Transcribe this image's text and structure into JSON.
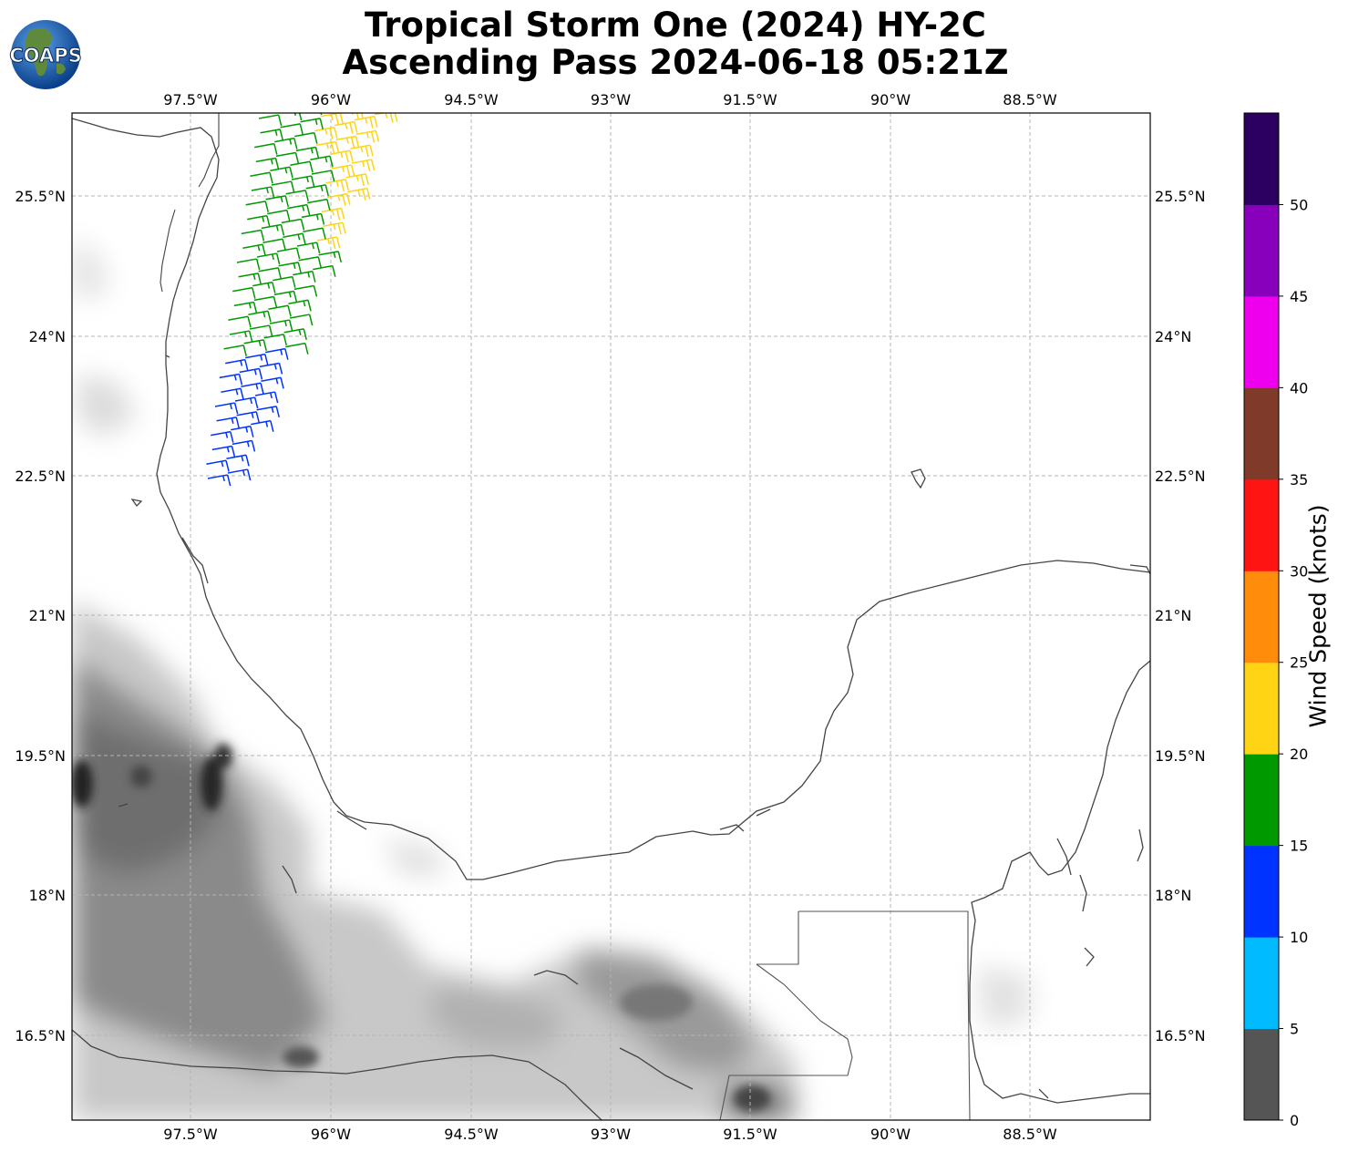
{
  "title_line1": "Tropical Storm One (2024) HY-2C",
  "title_line2": "Ascending Pass 2024-06-18 05:21Z",
  "logo_text": "COAPS",
  "lon_labels": [
    "97.5°W",
    "96°W",
    "94.5°W",
    "93°W",
    "91.5°W",
    "90°W",
    "88.5°W"
  ],
  "lat_labels": [
    "25.5°N",
    "24°N",
    "22.5°N",
    "21°N",
    "19.5°N",
    "18°N",
    "16.5°N"
  ],
  "colorbar": {
    "title": "Wind Speed (knots)",
    "ticks": [
      "0",
      "5",
      "10",
      "15",
      "20",
      "25",
      "30",
      "35",
      "40",
      "45",
      "50"
    ],
    "colors": [
      "#555555",
      "#00bbff",
      "#0033ff",
      "#009900",
      "#ffd414",
      "#ff8c0a",
      "#ff1414",
      "#7f3a2a",
      "#ee00ee",
      "#8800bb",
      "#2b0060"
    ]
  },
  "map": {
    "lon_range": [
      -98.8,
      -87.2
    ],
    "lat_range": [
      15.7,
      26.5
    ],
    "wind_barb_colors": {
      "blue": "#0033ff",
      "green": "#009900",
      "yellow": "#ffd414",
      "orange": "#ff8c0a"
    }
  }
}
